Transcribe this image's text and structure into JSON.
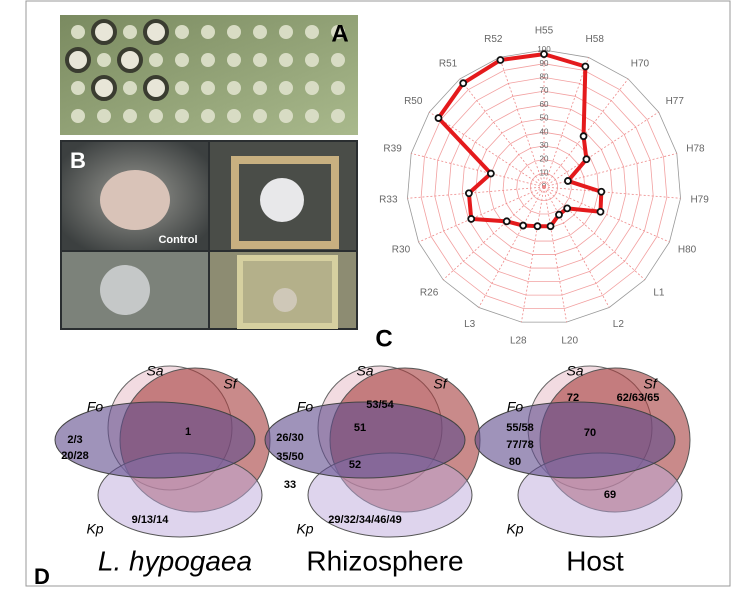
{
  "panels": {
    "a": "A",
    "b": "B",
    "c": "C",
    "d": "D"
  },
  "photo_label": "Control",
  "chart_data": {
    "type": "radar",
    "categories": [
      "H55",
      "H58",
      "H70",
      "H77",
      "H78",
      "H79",
      "H80",
      "L1",
      "L2",
      "L20",
      "L28",
      "L3",
      "R26",
      "R30",
      "R33",
      "R39",
      "R50",
      "R51",
      "R52"
    ],
    "values": [
      97,
      93,
      47,
      37,
      18,
      42,
      45,
      23,
      23,
      29,
      29,
      32,
      37,
      58,
      55,
      40,
      92,
      96,
      98
    ],
    "color": "#e41a1c",
    "rlim": [
      0,
      100
    ],
    "rticks": [
      0,
      10,
      20,
      30,
      40,
      50,
      60,
      70,
      80,
      90,
      100
    ]
  },
  "venn": [
    {
      "title": "L. hypogaea",
      "sets": [
        "Sa",
        "Sf",
        "Fo",
        "Kp"
      ],
      "regions": [
        "1",
        "2/3",
        "20/28",
        "9/13/14"
      ]
    },
    {
      "title": "Rhizosphere",
      "sets": [
        "Sa",
        "Sf",
        "Fo",
        "Kp"
      ],
      "regions": [
        "53/54",
        "51",
        "26/30",
        "35/50",
        "52",
        "33",
        "29/32/34/46/49"
      ]
    },
    {
      "title": "Host",
      "sets": [
        "Sa",
        "Sf",
        "Fo",
        "Kp"
      ],
      "regions": [
        "72",
        "62/63/65",
        "55/58",
        "77/78",
        "80",
        "70",
        "69"
      ]
    }
  ]
}
